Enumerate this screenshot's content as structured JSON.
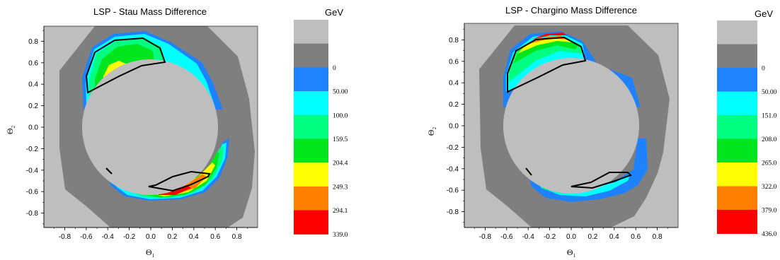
{
  "colors": {
    "background_light_gray": "#bebebe",
    "dark_gray": "#7f7f7f",
    "blue": "#1e82ff",
    "cyan": "#00ffff",
    "mint": "#00ff80",
    "green": "#00e61e",
    "yellow": "#ffff00",
    "orange": "#ff8000",
    "red": "#ff0000",
    "contour": "#000000"
  },
  "chart_data": [
    {
      "type": "heatmap",
      "title": "LSP - Stau Mass Difference",
      "xlabel": "Θ",
      "xlabel_subscript": "1",
      "ylabel": "Θ",
      "ylabel_subscript": "2",
      "xlim": [
        -1.0,
        1.0
      ],
      "ylim": [
        -1.0,
        1.0
      ],
      "x_ticks": [
        "-0.8",
        "-0.6",
        "-0.4",
        "-0.2",
        "0.0",
        "0.2",
        "0.4",
        "0.6",
        "0.8"
      ],
      "y_ticks": [
        "0.8",
        "0.6",
        "0.4",
        "0.2",
        "0.0",
        "-0.2",
        "-0.4",
        "-0.6",
        "-0.8"
      ],
      "colorbar": {
        "unit": "GeV",
        "levels": [
          "0",
          "50.00",
          "100.0",
          "159.5",
          "204.4",
          "249.3",
          "294.1",
          "339.0"
        ],
        "band_colors": [
          "#bebebe",
          "#7f7f7f",
          "#1e82ff",
          "#00ffff",
          "#00ff80",
          "#00e61e",
          "#ffff00",
          "#ff8000",
          "#ff0000"
        ]
      }
    },
    {
      "type": "heatmap",
      "title": "LSP - Chargino Mass Difference",
      "xlabel": "Θ",
      "xlabel_subscript": "1",
      "ylabel": "Θ",
      "ylabel_subscript": "2",
      "xlim": [
        -1.0,
        1.0
      ],
      "ylim": [
        -1.0,
        1.0
      ],
      "x_ticks": [
        "-0.8",
        "-0.6",
        "-0.4",
        "-0.2",
        "0.0",
        "0.2",
        "0.4",
        "0.6",
        "0.8"
      ],
      "y_ticks": [
        "0.8",
        "0.6",
        "0.4",
        "0.2",
        "0.0",
        "-0.2",
        "-0.4",
        "-0.6",
        "-0.8"
      ],
      "colorbar": {
        "unit": "GeV",
        "levels": [
          "0",
          "50.00",
          "151.0",
          "208.0",
          "265.0",
          "322.0",
          "379.0",
          "436.0"
        ],
        "band_colors": [
          "#bebebe",
          "#7f7f7f",
          "#1e82ff",
          "#00ffff",
          "#00ff80",
          "#00e61e",
          "#ffff00",
          "#ff8000",
          "#ff0000"
        ]
      }
    }
  ]
}
